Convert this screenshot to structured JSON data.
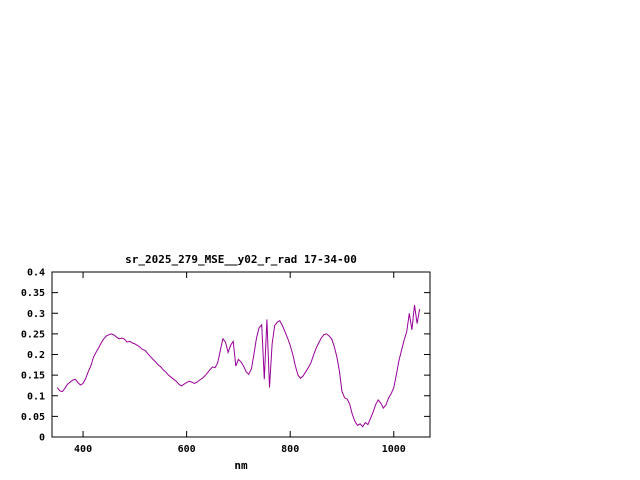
{
  "window": {
    "background": "#ffffff"
  },
  "chart_data": {
    "type": "line",
    "title": "sr_2025_279_MSE__y02_r_rad 17-34-00",
    "xlabel": "nm",
    "ylabel": "",
    "xlim": [
      340,
      1070
    ],
    "ylim": [
      0,
      0.4
    ],
    "xticks": [
      400,
      600,
      800,
      1000
    ],
    "xtick_labels": [
      "400",
      "600",
      "800",
      "1000"
    ],
    "yticks": [
      0,
      0.05,
      0.1,
      0.15,
      0.2,
      0.25,
      0.3,
      0.35,
      0.4
    ],
    "ytick_labels": [
      "0",
      "0.05",
      "0.1",
      "0.15",
      "0.2",
      "0.25",
      "0.3",
      "0.35",
      "0.4"
    ],
    "grid": false,
    "legend": "none",
    "line_color": "#990099",
    "axis_color": "#000000",
    "x": [
      350,
      355,
      360,
      365,
      370,
      375,
      380,
      385,
      390,
      395,
      400,
      405,
      410,
      415,
      420,
      425,
      430,
      435,
      440,
      445,
      450,
      455,
      460,
      465,
      470,
      475,
      480,
      485,
      490,
      495,
      500,
      505,
      510,
      515,
      520,
      525,
      530,
      535,
      540,
      545,
      550,
      555,
      560,
      565,
      570,
      575,
      580,
      585,
      590,
      595,
      600,
      605,
      610,
      615,
      620,
      625,
      630,
      635,
      640,
      645,
      650,
      655,
      660,
      665,
      670,
      675,
      680,
      685,
      690,
      695,
      700,
      705,
      710,
      715,
      720,
      725,
      730,
      735,
      740,
      745,
      750,
      755,
      760,
      765,
      770,
      775,
      780,
      785,
      790,
      795,
      800,
      805,
      810,
      815,
      820,
      825,
      830,
      835,
      840,
      845,
      850,
      855,
      860,
      865,
      870,
      875,
      880,
      885,
      890,
      895,
      900,
      905,
      910,
      915,
      920,
      925,
      930,
      935,
      940,
      945,
      950,
      955,
      960,
      965,
      970,
      975,
      980,
      985,
      990,
      995,
      1000,
      1005,
      1010,
      1015,
      1020,
      1025,
      1030,
      1035,
      1040,
      1045,
      1050
    ],
    "y": [
      0.12,
      0.112,
      0.11,
      0.118,
      0.128,
      0.133,
      0.138,
      0.14,
      0.132,
      0.126,
      0.13,
      0.142,
      0.158,
      0.172,
      0.193,
      0.205,
      0.216,
      0.228,
      0.238,
      0.245,
      0.248,
      0.25,
      0.247,
      0.242,
      0.238,
      0.24,
      0.237,
      0.23,
      0.232,
      0.228,
      0.226,
      0.222,
      0.218,
      0.212,
      0.21,
      0.202,
      0.195,
      0.188,
      0.182,
      0.175,
      0.17,
      0.163,
      0.157,
      0.15,
      0.145,
      0.14,
      0.135,
      0.128,
      0.124,
      0.128,
      0.132,
      0.135,
      0.133,
      0.13,
      0.133,
      0.138,
      0.142,
      0.148,
      0.155,
      0.163,
      0.17,
      0.168,
      0.18,
      0.21,
      0.238,
      0.23,
      0.205,
      0.222,
      0.232,
      0.172,
      0.188,
      0.182,
      0.172,
      0.158,
      0.152,
      0.165,
      0.2,
      0.24,
      0.265,
      0.272,
      0.14,
      0.285,
      0.12,
      0.225,
      0.27,
      0.278,
      0.282,
      0.27,
      0.255,
      0.24,
      0.222,
      0.2,
      0.172,
      0.15,
      0.142,
      0.148,
      0.158,
      0.168,
      0.18,
      0.198,
      0.215,
      0.228,
      0.24,
      0.248,
      0.25,
      0.245,
      0.238,
      0.22,
      0.195,
      0.16,
      0.11,
      0.095,
      0.092,
      0.08,
      0.055,
      0.038,
      0.028,
      0.032,
      0.025,
      0.035,
      0.03,
      0.045,
      0.06,
      0.078,
      0.09,
      0.082,
      0.07,
      0.078,
      0.095,
      0.105,
      0.12,
      0.15,
      0.185,
      0.21,
      0.235,
      0.255,
      0.3,
      0.26,
      0.32,
      0.275,
      0.31
    ]
  }
}
